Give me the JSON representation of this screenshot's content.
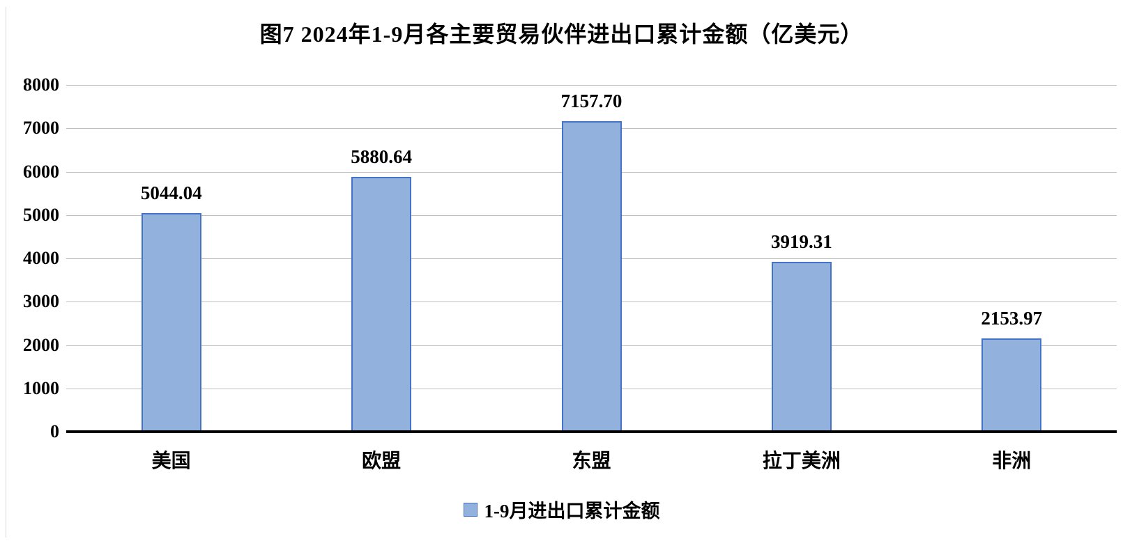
{
  "chart_data": {
    "type": "bar",
    "title": "图7 2024年1-9月各主要贸易伙伴进出口累计金额（亿美元）",
    "categories": [
      "美国",
      "欧盟",
      "东盟",
      "拉丁美洲",
      "非洲"
    ],
    "values": [
      5044.04,
      5880.64,
      7157.7,
      3919.31,
      2153.97
    ],
    "value_labels": [
      "5044.04",
      "5880.64",
      "7157.70",
      "3919.31",
      "2153.97"
    ],
    "series_name": "1-9月进出口累计金额",
    "xlabel": "",
    "ylabel": "",
    "ylim": [
      0,
      8000
    ],
    "ytick_interval": 1000,
    "ytick_labels": [
      "0",
      "1000",
      "2000",
      "3000",
      "4000",
      "5000",
      "6000",
      "7000",
      "8000"
    ],
    "grid": "horizontal",
    "legend_position": "bottom-center",
    "colors": {
      "bar_fill": "#93b1dd",
      "bar_border": "#4472c4",
      "gridline": "#bfbfbf",
      "axis_line": "#000000",
      "text": "#000000",
      "background": "#ffffff"
    }
  },
  "legend": {
    "label": "1-9月进出口累计金额"
  }
}
